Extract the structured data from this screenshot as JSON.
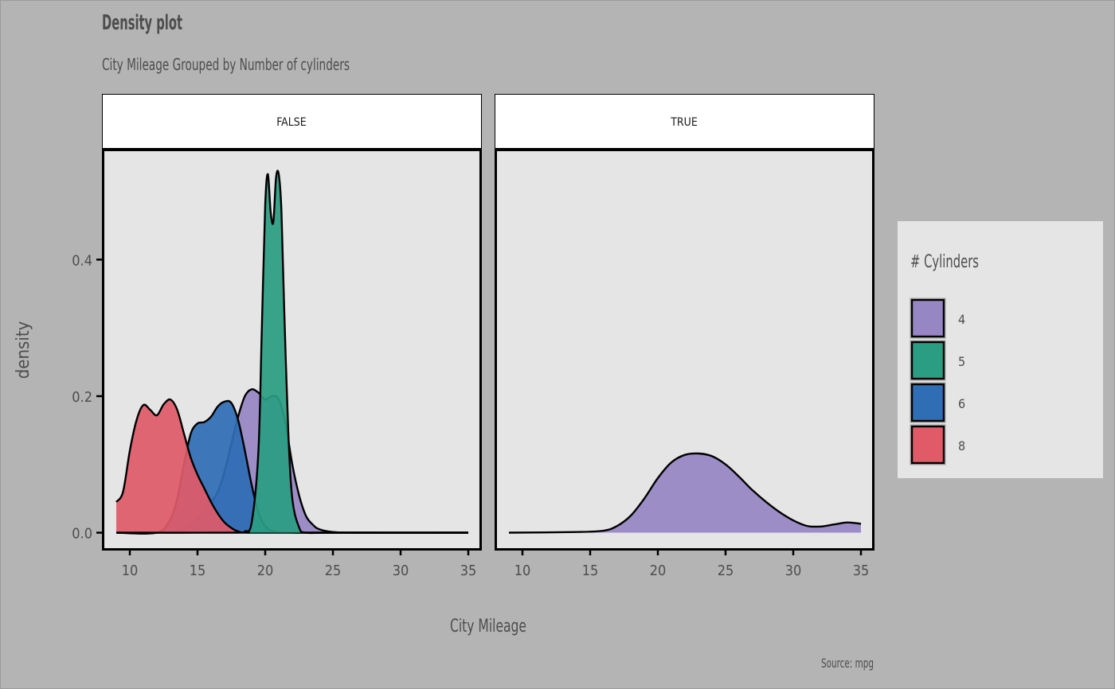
{
  "chart_data": {
    "type": "area",
    "chart_subtype": "faceted density plot",
    "title": "Density plot",
    "subtitle": "City Mileage Grouped by Number of cylinders",
    "xlabel": "City Mileage",
    "ylabel": "density",
    "caption": "Source: mpg",
    "xlim": [
      8,
      36
    ],
    "ylim": [
      -0.025,
      0.56
    ],
    "x_ticks": [
      10,
      15,
      20,
      25,
      30,
      35
    ],
    "x_tick_labels": [
      "10",
      "15",
      "20",
      "25",
      "30",
      "35"
    ],
    "y_ticks": [
      0.0,
      0.2,
      0.4
    ],
    "y_tick_labels": [
      "0.0",
      "0.2",
      "0.4"
    ],
    "grid": false,
    "legend": {
      "title": "# Cylinders",
      "position": "right",
      "entries": [
        {
          "label": "4",
          "color": "#9786c4"
        },
        {
          "label": "5",
          "color": "#2a9d82"
        },
        {
          "label": "6",
          "color": "#2f6db5"
        },
        {
          "label": "8",
          "color": "#e05a68"
        }
      ]
    },
    "panels": [
      {
        "label": "FALSE",
        "series": [
          {
            "name": "4",
            "color": "#9786c4",
            "x": [
              9,
              12,
              14,
              15,
              16,
              16.5,
              17,
              17.5,
              18,
              18.5,
              19,
              19.5,
              20,
              20.5,
              21,
              21.5,
              22,
              22.5,
              23,
              23.5,
              24,
              25,
              27,
              35
            ],
            "y": [
              0,
              0,
              0.005,
              0.02,
              0.045,
              0.06,
              0.09,
              0.13,
              0.17,
              0.2,
              0.21,
              0.205,
              0.195,
              0.2,
              0.195,
              0.16,
              0.1,
              0.055,
              0.025,
              0.012,
              0.005,
              0.001,
              0,
              0
            ]
          },
          {
            "name": "6",
            "color": "#2f6db5",
            "x": [
              9,
              12,
              13,
              13.5,
              14,
              14.5,
              15,
              15.5,
              16,
              16.5,
              17,
              17.5,
              18,
              18.5,
              19,
              19.5,
              20,
              21,
              25,
              35
            ],
            "y": [
              0,
              0,
              0.02,
              0.05,
              0.1,
              0.145,
              0.16,
              0.162,
              0.17,
              0.185,
              0.192,
              0.19,
              0.165,
              0.12,
              0.07,
              0.03,
              0.01,
              0.001,
              0,
              0
            ]
          },
          {
            "name": "8",
            "color": "#e05a68",
            "x": [
              9,
              9.5,
              10,
              10.5,
              11,
              11.5,
              12,
              12.5,
              13,
              13.5,
              14,
              14.5,
              15,
              15.5,
              16,
              16.5,
              17,
              17.5,
              18,
              19,
              25,
              35
            ],
            "y": [
              0.045,
              0.06,
              0.12,
              0.165,
              0.187,
              0.18,
              0.172,
              0.188,
              0.195,
              0.18,
              0.145,
              0.11,
              0.085,
              0.065,
              0.045,
              0.028,
              0.015,
              0.007,
              0.002,
              0,
              0,
              0
            ]
          },
          {
            "name": "5",
            "color": "#2a9d82",
            "x": [
              9,
              18,
              18.5,
              19,
              19.5,
              19.75,
              20,
              20.2,
              20.4,
              20.6,
              20.8,
              21,
              21.2,
              21.4,
              21.7,
              22,
              22.5,
              23,
              25,
              35
            ],
            "y": [
              0,
              0,
              0.002,
              0.015,
              0.12,
              0.3,
              0.48,
              0.525,
              0.47,
              0.455,
              0.52,
              0.525,
              0.47,
              0.33,
              0.15,
              0.05,
              0.008,
              0,
              0,
              0
            ]
          }
        ]
      },
      {
        "label": "TRUE",
        "series": [
          {
            "name": "4",
            "color": "#9786c4",
            "x": [
              9,
              14,
              16,
              17,
              18,
              19,
              20,
              21,
              22,
              23,
              24,
              25,
              26,
              27,
              28,
              29,
              30,
              31,
              32,
              33,
              34,
              35
            ],
            "y": [
              0,
              0.001,
              0.003,
              0.01,
              0.025,
              0.05,
              0.08,
              0.103,
              0.114,
              0.116,
              0.112,
              0.1,
              0.082,
              0.062,
              0.045,
              0.03,
              0.018,
              0.01,
              0.009,
              0.012,
              0.015,
              0.013
            ]
          }
        ]
      }
    ]
  }
}
